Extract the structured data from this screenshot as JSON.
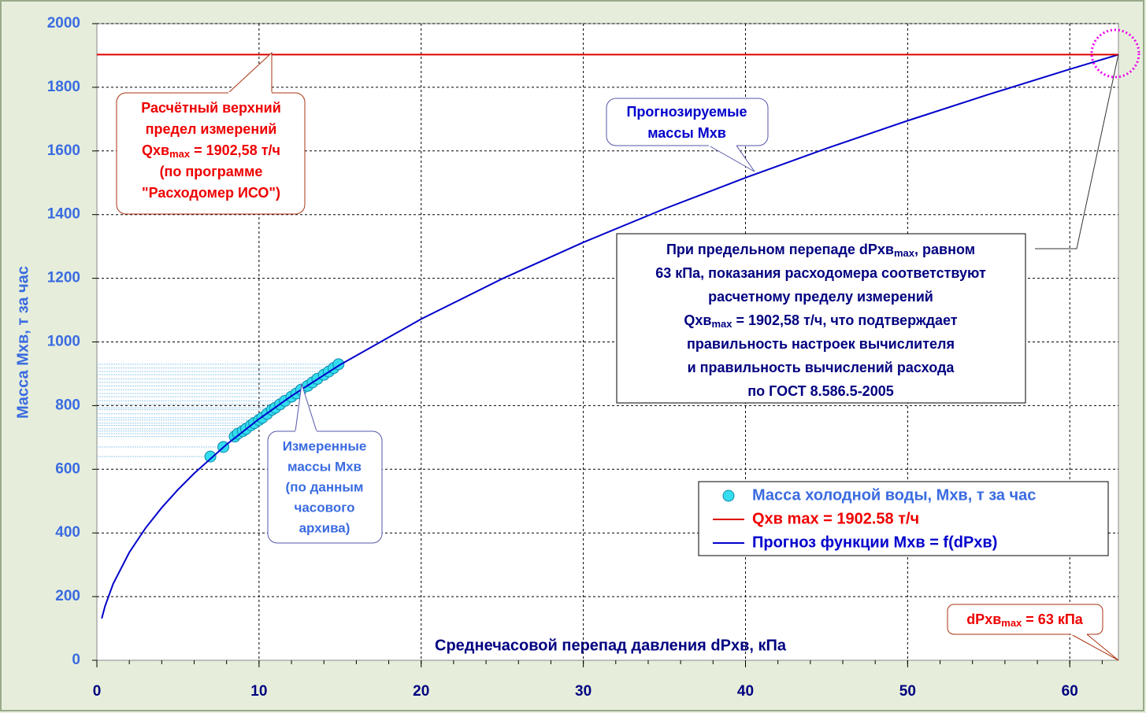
{
  "chart_data": {
    "type": "line",
    "x_label": "Среднечасовой перепад давления dPхв, кПа",
    "y_label": "Масса Мхв, т за час",
    "xlim": [
      0,
      63
    ],
    "xticks": [
      0,
      10,
      20,
      30,
      40,
      50,
      60
    ],
    "ylim": [
      0,
      2000
    ],
    "yticks": [
      0,
      200,
      400,
      600,
      800,
      1000,
      1200,
      1400,
      1600,
      1800,
      2000
    ],
    "grid": true,
    "legend": "lower right",
    "series": [
      {
        "name": "Масса холодной воды, Мхв, т за час",
        "type": "scatter",
        "color": "#33ddee",
        "x": [
          7.0,
          7.8,
          8.5,
          8.7,
          9.0,
          9.2,
          9.5,
          9.7,
          10.0,
          10.2,
          10.5,
          10.8,
          11.0,
          11.3,
          11.6,
          12.0,
          12.3,
          12.6,
          13.0,
          13.3,
          13.6,
          14.0,
          14.3,
          14.6,
          14.9
        ],
        "values": [
          640,
          670,
          703,
          712,
          720,
          727,
          738,
          745,
          755,
          762,
          774,
          787,
          793,
          804,
          815,
          828,
          838,
          850,
          862,
          873,
          884,
          897,
          907,
          918,
          930
        ]
      },
      {
        "name": "Qхв max = 1902.58 т/ч",
        "type": "hline",
        "color": "#dd0000",
        "value": 1902.58
      },
      {
        "name": "Прогноз функции Мхв = f(dPхв)",
        "type": "line",
        "color": "#0000cc",
        "x": [
          0.3,
          0.5,
          1,
          2,
          3,
          4,
          5,
          6,
          8,
          10,
          12,
          15,
          20,
          25,
          30,
          35,
          40,
          45,
          50,
          55,
          60,
          63
        ],
        "values": [
          131.3,
          169.5,
          239.7,
          339.0,
          415.2,
          479.4,
          536.0,
          587.1,
          678.0,
          758.0,
          830.3,
          928.4,
          1072.0,
          1198.5,
          1312.9,
          1418.1,
          1516.0,
          1608.0,
          1695.0,
          1777.6,
          1856.7,
          1902.6
        ]
      }
    ],
    "annotations": [
      {
        "lines": [
          "Расчётный верхний",
          "предел измерений",
          [
            "Qхв",
            "max",
            " = 1902,58 т/ч"
          ],
          "(по программе",
          "\"Расходомер ИСО\")"
        ]
      },
      {
        "lines": [
          "Прогнозируемые",
          "массы Мхв"
        ]
      },
      {
        "lines": [
          "Измеренные",
          "массы Мхв",
          "(по данным",
          "часового",
          "архива)"
        ]
      },
      {
        "lines": [
          [
            "При предельном перепаде dPхв",
            "max",
            ", равном"
          ],
          "63 кПа, показания расходомера соответствуют",
          "расчетному пределу измерений",
          [
            "Qхв",
            "max",
            " = 1902,58 т/ч, что подтверждает"
          ],
          "правильность настроек вычислителя",
          "и правильность вычислений расхода",
          "по ГОСТ 8.586.5-2005"
        ]
      },
      {
        "lines": [
          [
            "dPхв",
            "max",
            " = 63 кПа"
          ]
        ]
      }
    ]
  }
}
